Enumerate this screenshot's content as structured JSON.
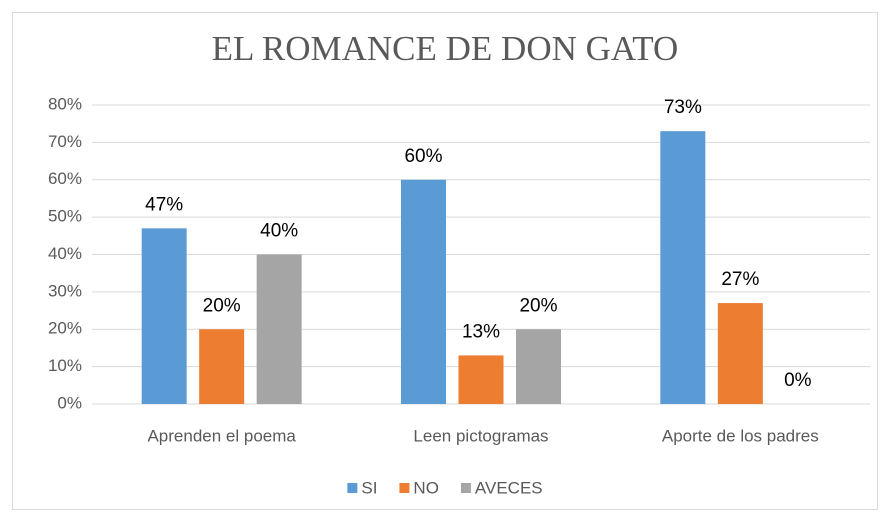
{
  "chart_data": {
    "type": "bar",
    "title": "EL ROMANCE DE DON GATO",
    "categories": [
      "Aprenden el poema",
      "Leen pictogramas",
      "Aporte de los padres"
    ],
    "series": [
      {
        "name": "SI",
        "color": "#5b9bd5",
        "values": [
          47,
          60,
          73
        ],
        "value_labels": [
          "47%",
          "60%",
          "73%"
        ]
      },
      {
        "name": "NO",
        "color": "#ed7d31",
        "values": [
          20,
          13,
          27
        ],
        "value_labels": [
          "20%",
          "13%",
          "27%"
        ]
      },
      {
        "name": "AVECES",
        "color": "#a5a5a5",
        "values": [
          40,
          20,
          0
        ],
        "value_labels": [
          "40%",
          "20%",
          "0%"
        ]
      }
    ],
    "ylim": [
      0,
      80
    ],
    "yticks": [
      {
        "value": 0,
        "label": "0%"
      },
      {
        "value": 10,
        "label": "10%"
      },
      {
        "value": 20,
        "label": "20%"
      },
      {
        "value": 30,
        "label": "30%"
      },
      {
        "value": 40,
        "label": "40%"
      },
      {
        "value": 50,
        "label": "50%"
      },
      {
        "value": 60,
        "label": "60%"
      },
      {
        "value": 70,
        "label": "70%"
      },
      {
        "value": 80,
        "label": "80%"
      }
    ],
    "grid": true,
    "legend": "bottom"
  }
}
